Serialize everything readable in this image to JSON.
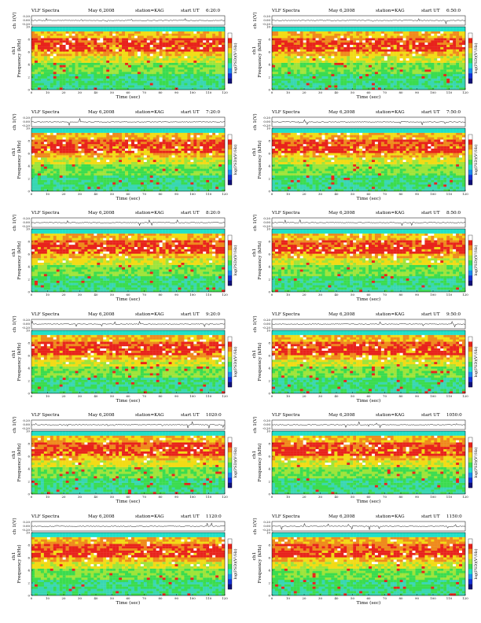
{
  "header": {
    "instrument": "VLF Spectra",
    "date": "May 6,2008",
    "station": "station=KAG",
    "start_prefix": "start UT"
  },
  "labels": {
    "timeseries_ylabel": "ch 1(V)",
    "spec_ylabel_ch": "ch1",
    "spec_ylabel": "Frequency (kHz)",
    "xlabel": "Time (sec)",
    "colorbar_label": "log(PSD)(V²/Hz)"
  },
  "ticks": {
    "time": [
      "0",
      "10",
      "20",
      "30",
      "40",
      "50",
      "60",
      "70",
      "80",
      "90",
      "100",
      "110",
      "120"
    ],
    "freq": [
      "0",
      "2",
      "4",
      "6",
      "8",
      "10"
    ],
    "volt": [
      "0.20",
      "0.00",
      "-0.20"
    ]
  },
  "colors": {
    "top_band": "#21e0c8",
    "band_upper": "#f2db16",
    "band_red": "#e8231c",
    "band_orange": "#ef8a1c",
    "band_green_light": "#9fe43a",
    "band_green": "#3bdc4f",
    "band_teal": "#39d6b3",
    "colorbar": [
      "#ffffff",
      "#e8231c",
      "#ef8a1c",
      "#f2db16",
      "#9fe43a",
      "#3bdc4f",
      "#21e0c8",
      "#1b8cf0",
      "#1430d8",
      "#10107a"
    ]
  },
  "chart_data": [
    {
      "type": "heatmap",
      "start_ut": "6:20:0",
      "xlabel": "Time (sec)",
      "ylabel": "Frequency (kHz)",
      "xlim": [
        0,
        120
      ],
      "ylim": [
        0,
        10
      ],
      "timeseries_ylim": [
        -0.2,
        0.2
      ]
    },
    {
      "type": "heatmap",
      "start_ut": "6:50:0",
      "xlabel": "Time (sec)",
      "ylabel": "Frequency (kHz)",
      "xlim": [
        0,
        120
      ],
      "ylim": [
        0,
        10
      ],
      "timeseries_ylim": [
        -0.2,
        0.2
      ]
    },
    {
      "type": "heatmap",
      "start_ut": "7:20:0",
      "xlabel": "Time (sec)",
      "ylabel": "Frequency (kHz)",
      "xlim": [
        0,
        120
      ],
      "ylim": [
        0,
        10
      ],
      "timeseries_ylim": [
        -0.2,
        0.2
      ]
    },
    {
      "type": "heatmap",
      "start_ut": "7:50:0",
      "xlabel": "Time (sec)",
      "ylabel": "Frequency (kHz)",
      "xlim": [
        0,
        120
      ],
      "ylim": [
        0,
        10
      ],
      "timeseries_ylim": [
        -0.2,
        0.2
      ]
    },
    {
      "type": "heatmap",
      "start_ut": "8:20:0",
      "xlabel": "Time (sec)",
      "ylabel": "Frequency (kHz)",
      "xlim": [
        0,
        120
      ],
      "ylim": [
        0,
        10
      ],
      "timeseries_ylim": [
        -0.2,
        0.2
      ]
    },
    {
      "type": "heatmap",
      "start_ut": "8:50:0",
      "xlabel": "Time (sec)",
      "ylabel": "Frequency (kHz)",
      "xlim": [
        0,
        120
      ],
      "ylim": [
        0,
        10
      ],
      "timeseries_ylim": [
        -0.2,
        0.2
      ]
    },
    {
      "type": "heatmap",
      "start_ut": "9:20:0",
      "xlabel": "Time (sec)",
      "ylabel": "Frequency (kHz)",
      "xlim": [
        0,
        120
      ],
      "ylim": [
        0,
        10
      ],
      "timeseries_ylim": [
        -0.2,
        0.2
      ]
    },
    {
      "type": "heatmap",
      "start_ut": "9:50:0",
      "xlabel": "Time (sec)",
      "ylabel": "Frequency (kHz)",
      "xlim": [
        0,
        120
      ],
      "ylim": [
        0,
        10
      ],
      "timeseries_ylim": [
        -0.2,
        0.2
      ]
    },
    {
      "type": "heatmap",
      "start_ut": "1020:0",
      "xlabel": "Time (sec)",
      "ylabel": "Frequency (kHz)",
      "xlim": [
        0,
        120
      ],
      "ylim": [
        0,
        10
      ],
      "timeseries_ylim": [
        -0.2,
        0.2
      ]
    },
    {
      "type": "heatmap",
      "start_ut": "1050:0",
      "xlabel": "Time (sec)",
      "ylabel": "Frequency (kHz)",
      "xlim": [
        0,
        120
      ],
      "ylim": [
        0,
        10
      ],
      "timeseries_ylim": [
        -0.2,
        0.2
      ]
    },
    {
      "type": "heatmap",
      "start_ut": "1120:0",
      "xlabel": "Time (sec)",
      "ylabel": "Frequency (kHz)",
      "xlim": [
        0,
        120
      ],
      "ylim": [
        0,
        10
      ],
      "timeseries_ylim": [
        -0.2,
        0.2
      ]
    },
    {
      "type": "heatmap",
      "start_ut": "1150:0",
      "xlabel": "Time (sec)",
      "ylabel": "Frequency (kHz)",
      "xlim": [
        0,
        120
      ],
      "ylim": [
        0,
        10
      ],
      "timeseries_ylim": [
        -0.2,
        0.2
      ]
    }
  ]
}
